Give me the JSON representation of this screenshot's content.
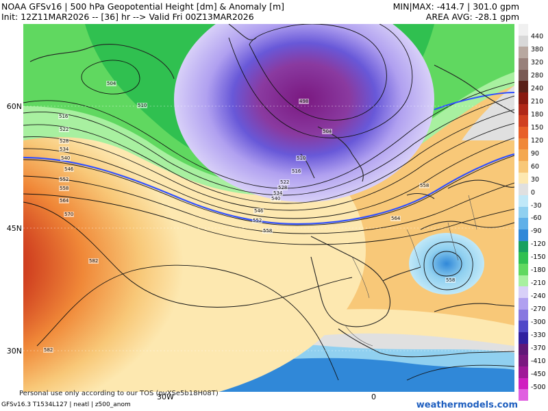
{
  "header": {
    "line1_left": "NOAA GFSv16 | 500 hPa Geopotential Height [dm] & Anomaly [m]",
    "line2_left": "Init: 12Z11MAR2026 -- [36] hr --> Valid Fri 00Z13MAR2026",
    "line1_right": "MIN|MAX: -414.7 | 301.0 gpm",
    "line2_right": "AREA AVG: -28.1 gpm"
  },
  "map": {
    "lat_labels": [
      "60N",
      "45N",
      "30N"
    ],
    "lon_labels": [
      "30W",
      "0"
    ],
    "contour_labels": [
      "504",
      "510",
      "516",
      "522",
      "528",
      "534",
      "540",
      "546",
      "552",
      "558",
      "564",
      "570",
      "582",
      "582",
      "498",
      "504",
      "510",
      "516",
      "522",
      "528",
      "534",
      "540",
      "546",
      "552",
      "558",
      "564",
      "558",
      "558"
    ],
    "highlight_contour_color": "#3050ff"
  },
  "footer": {
    "tos": "Personal use only according to our TOS (pvXSe5b18H08T)",
    "model_info": "GFSv16.3 T1534L127 | neatl | z500_anom",
    "brand": "weathermodels.com"
  },
  "colorbar": {
    "labels": [
      "440",
      "380",
      "320",
      "280",
      "240",
      "210",
      "180",
      "150",
      "120",
      "90",
      "60",
      "30",
      "0",
      "-30",
      "-60",
      "-90",
      "-120",
      "-150",
      "-180",
      "-210",
      "-240",
      "-270",
      "-300",
      "-330",
      "-370",
      "-410",
      "-450",
      "-500"
    ],
    "colors": [
      "#f0f0f0",
      "#d8d8d8",
      "#b8a8a0",
      "#98807a",
      "#7a5a54",
      "#5a2018",
      "#8a1a10",
      "#b02818",
      "#d04020",
      "#e86028",
      "#f08838",
      "#f4a850",
      "#f8c878",
      "#fde8b0",
      "#e0e0e0",
      "#c0e8f8",
      "#90d0f0",
      "#60b0e8",
      "#3088d8",
      "#18a060",
      "#30c050",
      "#60d860",
      "#a8f0a0",
      "#d8d0f8",
      "#b0a0f0",
      "#8878e0",
      "#5048c8",
      "#3020a0",
      "#601878",
      "#7a1880",
      "#a01898",
      "#d020c0",
      "#e060e0"
    ]
  }
}
